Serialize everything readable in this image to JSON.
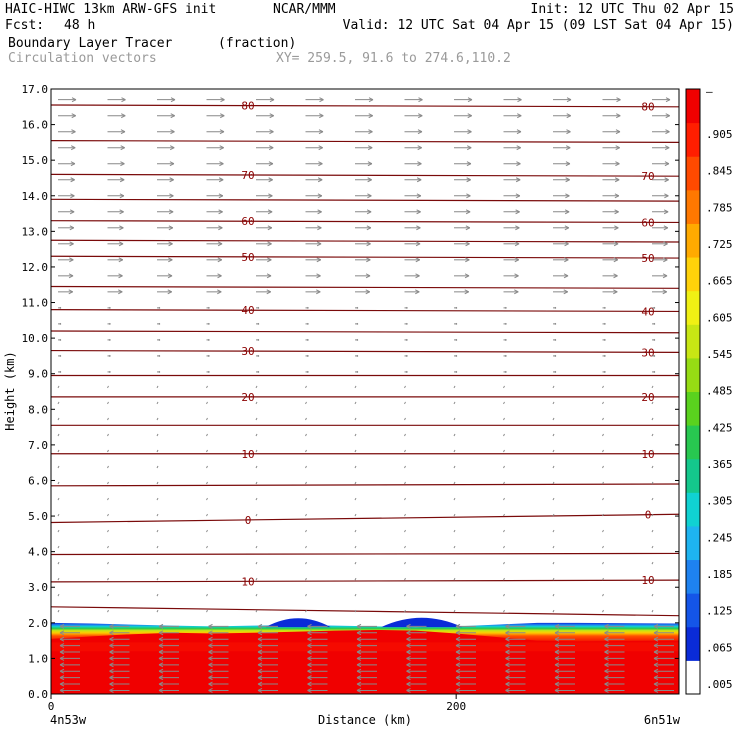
{
  "header": {
    "model": "HAIC-HIWC 13km ARW-GFS init",
    "org": "NCAR/MMM",
    "init": "Init: 12 UTC Thu 02 Apr 15",
    "fcst_label": "Fcst:",
    "fcst_value": "48 h",
    "valid": "Valid: 12 UTC Sat 04 Apr 15 (09 LST Sat 04 Apr 15)",
    "field": "Boundary Layer Tracer",
    "field_unit": "(fraction)",
    "vectors": "Circulation vectors",
    "xy": "XY= 259.5, 91.6 to 274.6,110.2"
  },
  "chart_data": {
    "type": "heatmap",
    "xlabel": "Distance (km)",
    "ylabel": "Height (km)",
    "xlim": [
      0,
      310
    ],
    "ylim": [
      0,
      17
    ],
    "x_ticks": [
      "0",
      "200"
    ],
    "y_ticks": [
      "0.0",
      "1.0",
      "2.0",
      "3.0",
      "4.0",
      "5.0",
      "6.0",
      "7.0",
      "8.0",
      "9.0",
      "10.0",
      "11.0",
      "12.0",
      "13.0",
      "14.0",
      "15.0",
      "16.0",
      "17.0"
    ],
    "left_endpoint": "4n53w",
    "right_endpoint": "6n51w",
    "colorbar": {
      "labels": [
        ".005",
        ".065",
        ".125",
        ".185",
        ".245",
        ".305",
        ".365",
        ".425",
        ".485",
        ".545",
        ".605",
        ".665",
        ".725",
        ".785",
        ".845",
        ".905"
      ],
      "colors": [
        "#ffffff",
        "#0a2bd8",
        "#1455e8",
        "#1e82f0",
        "#1eb4f0",
        "#10d2d2",
        "#14c88c",
        "#28c850",
        "#5ad21e",
        "#96dc14",
        "#c8e614",
        "#f0f014",
        "#ffd20a",
        "#ffaa00",
        "#ff7800",
        "#ff4a00",
        "#ff1e00",
        "#f00000"
      ]
    },
    "tracer_field": {
      "full_value_top_km": [
        1.55,
        1.62,
        1.68,
        1.72,
        1.7,
        1.72,
        1.75,
        1.78,
        1.8,
        1.78,
        1.7,
        1.6,
        1.5,
        1.48,
        1.5
      ],
      "transition_top_km": [
        2.0,
        1.98,
        1.95,
        1.92,
        1.9,
        1.92,
        1.94,
        1.92,
        1.9,
        1.88,
        1.9,
        1.95,
        2.0,
        2.0,
        1.98
      ],
      "x_km": [
        0,
        20,
        40,
        60,
        80,
        100,
        120,
        140,
        160,
        180,
        200,
        220,
        240,
        260,
        310
      ],
      "bumps": [
        {
          "x_center": 122,
          "half_width": 16,
          "top_km": 2.15
        },
        {
          "x_center": 183,
          "half_width": 20,
          "top_km": 2.18
        }
      ]
    },
    "contours": [
      {
        "label": "80",
        "y_left": 16.55,
        "y_right": 16.5
      },
      {
        "label": "",
        "y_left": 15.55,
        "y_right": 15.5
      },
      {
        "label": "70",
        "y_left": 14.6,
        "y_right": 14.55
      },
      {
        "label": "",
        "y_left": 13.9,
        "y_right": 13.85
      },
      {
        "label": "60",
        "y_left": 13.3,
        "y_right": 13.25
      },
      {
        "label": "",
        "y_left": 12.75,
        "y_right": 12.7
      },
      {
        "label": "50",
        "y_left": 12.3,
        "y_right": 12.25
      },
      {
        "label": "",
        "y_left": 11.45,
        "y_right": 11.4
      },
      {
        "label": "40",
        "y_left": 10.8,
        "y_right": 10.75
      },
      {
        "label": "",
        "y_left": 10.2,
        "y_right": 10.15
      },
      {
        "label": "30",
        "y_left": 9.65,
        "y_right": 9.6
      },
      {
        "label": "",
        "y_left": 8.95,
        "y_right": 8.95
      },
      {
        "label": "20",
        "y_left": 8.35,
        "y_right": 8.35
      },
      {
        "label": "",
        "y_left": 7.55,
        "y_right": 7.55
      },
      {
        "label": "10",
        "y_left": 6.75,
        "y_right": 6.75
      },
      {
        "label": "",
        "y_left": 5.85,
        "y_right": 5.9
      },
      {
        "label": "0",
        "y_left": 4.82,
        "y_right": 5.05
      },
      {
        "label": "",
        "y_left": 3.92,
        "y_right": 3.95
      },
      {
        "label": "10",
        "y_left": 3.15,
        "y_right": 3.2
      },
      {
        "label": "",
        "y_left": 2.45,
        "y_right": 2.2
      }
    ],
    "vectors_info": {
      "upper_u": "westerly",
      "lower_u": "easterly"
    }
  }
}
